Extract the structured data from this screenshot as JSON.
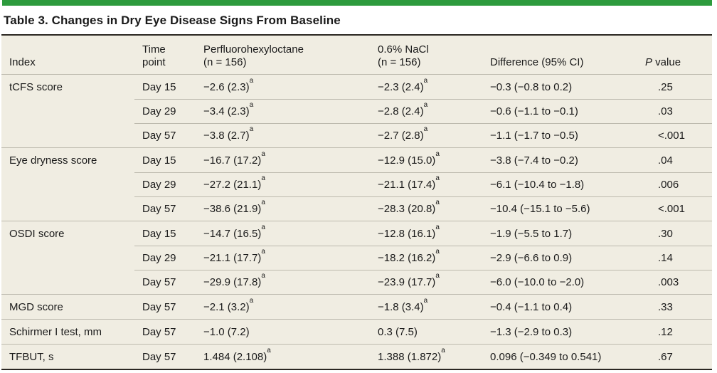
{
  "title": "Table 3. Changes in Dry Eye Disease Signs From Baseline",
  "colors": {
    "accent_green": "#2d9b3d",
    "table_background": "#f0ede2",
    "dark_rule": "#2b2722",
    "row_line": "#bdbaae",
    "text": "#1a1a1a"
  },
  "table": {
    "header": {
      "index": "Index",
      "time_point": [
        "Time",
        "point"
      ],
      "pfho": [
        "Perfluorohexyloctane",
        "(n = 156)"
      ],
      "nacl": [
        "0.6% NaCl",
        "(n = 156)"
      ],
      "difference": "Difference (95% CI)",
      "p_italic": "P",
      "p_rest": " value"
    },
    "footnote_marker": "a",
    "groups": [
      {
        "index": "tCFS score",
        "rows": [
          {
            "time": "Day 15",
            "pfho": "−2.6 (2.3)",
            "pfho_sup": true,
            "nacl": "−2.3 (2.4)",
            "nacl_sup": true,
            "diff": "−0.3 (−0.8 to 0.2)",
            "p": ".25"
          },
          {
            "time": "Day 29",
            "pfho": "−3.4 (2.3)",
            "pfho_sup": true,
            "nacl": "−2.8 (2.4)",
            "nacl_sup": true,
            "diff": "−0.6 (−1.1 to −0.1)",
            "p": ".03"
          },
          {
            "time": "Day 57",
            "pfho": "−3.8 (2.7)",
            "pfho_sup": true,
            "nacl": "−2.7 (2.8)",
            "nacl_sup": true,
            "diff": "−1.1 (−1.7 to −0.5)",
            "p": "<.001"
          }
        ]
      },
      {
        "index": "Eye dryness score",
        "rows": [
          {
            "time": "Day 15",
            "pfho": "−16.7 (17.2)",
            "pfho_sup": true,
            "nacl": "−12.9 (15.0)",
            "nacl_sup": true,
            "diff": "−3.8 (−7.4 to −0.2)",
            "p": ".04"
          },
          {
            "time": "Day 29",
            "pfho": "−27.2 (21.1)",
            "pfho_sup": true,
            "nacl": "−21.1 (17.4)",
            "nacl_sup": true,
            "diff": "−6.1 (−10.4 to −1.8)",
            "p": ".006"
          },
          {
            "time": "Day 57",
            "pfho": "−38.6 (21.9)",
            "pfho_sup": true,
            "nacl": "−28.3 (20.8)",
            "nacl_sup": true,
            "diff": "−10.4 (−15.1 to −5.6)",
            "p": "<.001"
          }
        ]
      },
      {
        "index": "OSDI score",
        "rows": [
          {
            "time": "Day 15",
            "pfho": "−14.7 (16.5)",
            "pfho_sup": true,
            "nacl": "−12.8 (16.1)",
            "nacl_sup": true,
            "diff": "−1.9 (−5.5 to 1.7)",
            "p": ".30"
          },
          {
            "time": "Day 29",
            "pfho": "−21.1 (17.7)",
            "pfho_sup": true,
            "nacl": "−18.2 (16.2)",
            "nacl_sup": true,
            "diff": "−2.9 (−6.6 to 0.9)",
            "p": ".14"
          },
          {
            "time": "Day 57",
            "pfho": "−29.9 (17.8)",
            "pfho_sup": true,
            "nacl": "−23.9 (17.7)",
            "nacl_sup": true,
            "diff": "−6.0 (−10.0 to −2.0)",
            "p": ".003"
          }
        ]
      },
      {
        "index": "MGD score",
        "rows": [
          {
            "time": "Day 57",
            "pfho": "−2.1 (3.2)",
            "pfho_sup": true,
            "nacl": "−1.8 (3.4)",
            "nacl_sup": true,
            "diff": "−0.4 (−1.1 to 0.4)",
            "p": ".33"
          }
        ]
      },
      {
        "index": "Schirmer I test, mm",
        "rows": [
          {
            "time": "Day 57",
            "pfho": "−1.0 (7.2)",
            "pfho_sup": false,
            "nacl": "0.3 (7.5)",
            "nacl_sup": false,
            "diff": "−1.3 (−2.9 to 0.3)",
            "p": ".12"
          }
        ]
      },
      {
        "index": "TFBUT, s",
        "rows": [
          {
            "time": "Day 57",
            "pfho": "1.484 (2.108)",
            "pfho_sup": true,
            "nacl": "1.388 (1.872)",
            "nacl_sup": true,
            "diff": "0.096 (−0.349 to 0.541)",
            "p": ".67"
          }
        ]
      }
    ]
  }
}
